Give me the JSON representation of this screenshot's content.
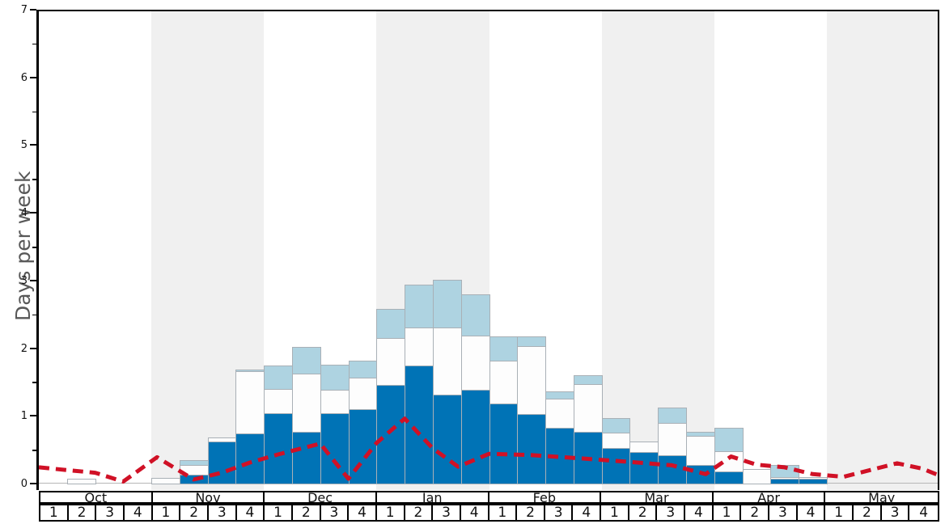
{
  "chart_data": {
    "type": "bar",
    "subtype": "stacked-bars-with-dashed-line-overlay",
    "title": "",
    "xlabel": "",
    "ylabel": "Days per week",
    "ylim": [
      0,
      7
    ],
    "yticks": [
      0,
      1,
      2,
      3,
      4,
      5,
      6,
      7
    ],
    "grid": "off",
    "legend": "none",
    "months": [
      "Oct",
      "Nov",
      "Dec",
      "Jan",
      "Feb",
      "Mar",
      "Apr",
      "May"
    ],
    "week_labels": [
      "1",
      "2",
      "3",
      "4"
    ],
    "weeks_per_month": 4,
    "band_alt_color": "#f0f0f0",
    "series": [
      {
        "name": "dark-blue-bottom-segment",
        "color": "#0073b6",
        "values": [
          0,
          0,
          0,
          0,
          0,
          0.13,
          0.62,
          0.74,
          1.04,
          0.76,
          1.04,
          1.1,
          1.46,
          1.74,
          1.31,
          1.38,
          1.18,
          1.03,
          0.82,
          0.76,
          0.53,
          0.47,
          0.42,
          0.27,
          0.18,
          0,
          0.07,
          0.07,
          0,
          0,
          0,
          0
        ]
      },
      {
        "name": "white-middle-segment",
        "color": "#fdfdfd",
        "values": [
          0,
          0.07,
          0,
          0,
          0.08,
          0.14,
          0.06,
          0.92,
          0.36,
          0.87,
          0.35,
          0.47,
          0.69,
          0.57,
          1.0,
          0.81,
          0.64,
          1.0,
          0.44,
          0.71,
          0.22,
          0.15,
          0.47,
          0.43,
          0.3,
          0.22,
          0.03,
          0.03,
          0,
          0,
          0,
          0
        ]
      },
      {
        "name": "light-blue-top-segment",
        "color": "#aed3e1",
        "values": [
          0,
          0,
          0,
          0,
          0,
          0.08,
          0,
          0.03,
          0.35,
          0.39,
          0.37,
          0.24,
          0.43,
          0.63,
          0.7,
          0.6,
          0.35,
          0.14,
          0.1,
          0.13,
          0.22,
          0,
          0.23,
          0.07,
          0.35,
          0,
          0.18,
          0,
          0,
          0,
          0,
          0
        ]
      }
    ],
    "line_series": {
      "name": "red-dashed-line",
      "color": "#d01126",
      "dash": [
        13,
        8
      ],
      "stroke_width": 5,
      "points_week_units": [
        [
          0,
          0.24
        ],
        [
          1,
          0.2
        ],
        [
          2,
          0.16
        ],
        [
          3,
          0.03
        ],
        [
          4.2,
          0.39
        ],
        [
          5.5,
          0.06
        ],
        [
          6.5,
          0.16
        ],
        [
          7.5,
          0.31
        ],
        [
          8.5,
          0.43
        ],
        [
          10,
          0.59
        ],
        [
          11,
          0.07
        ],
        [
          12,
          0.6
        ],
        [
          13,
          0.96
        ],
        [
          14,
          0.52
        ],
        [
          14.9,
          0.25
        ],
        [
          16,
          0.44
        ],
        [
          17.5,
          0.42
        ],
        [
          19,
          0.38
        ],
        [
          21,
          0.32
        ],
        [
          22.5,
          0.27
        ],
        [
          23.7,
          0.14
        ],
        [
          24.6,
          0.4
        ],
        [
          25.5,
          0.28
        ],
        [
          26.5,
          0.24
        ],
        [
          27.5,
          0.14
        ],
        [
          28.6,
          0.1
        ],
        [
          30.5,
          0.3
        ],
        [
          31.4,
          0.22
        ],
        [
          32,
          0.12
        ]
      ]
    }
  }
}
